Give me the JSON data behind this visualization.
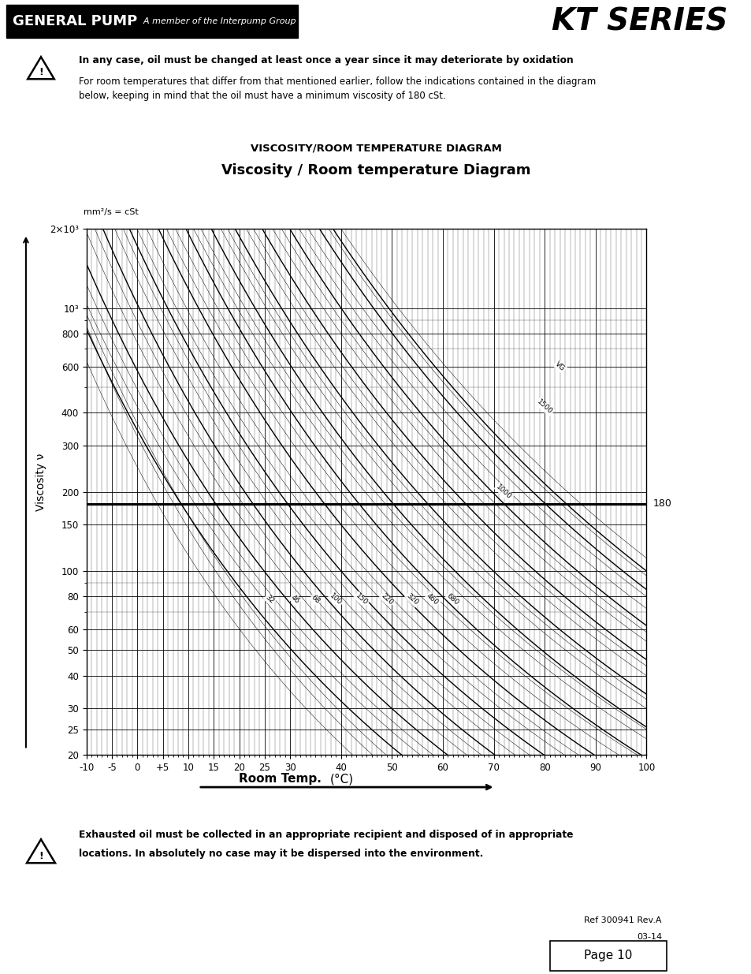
{
  "title_diagram": "VISCOSITY/ROOM TEMPERATURE DIAGRAM",
  "subtitle_diagram": "Viscosity / Room temperature Diagram",
  "ylabel_unit": "mm²/s = cSt",
  "ylabel_label": "Viscosity ν",
  "xlabel_label": "Room Temp.",
  "xlabel_unit": "(°C)",
  "header_left_text": "GENERAL PUMP",
  "header_left_sub": "A member of the Interpump Group",
  "header_right": "KT SERIES",
  "footer_note": "Exhausted oil must be collected in an appropriate recipient and disposed of in appropriate\nlocations. In absolutely no case may it be dispersed into the environment.",
  "ref_text": "Ref 300941 Rev.A",
  "ref_date": "03-14",
  "page_label": "Page 10",
  "warning_bold": "In any case, oil must be changed at least once a year since it may deteriorate by oxidation.",
  "warning_normal": "For room temperatures that differ from that mentioned earlier, follow the indications contained in the diagram\nbelow, keeping in mind that the oil must have a minimum viscosity of 180 cSt.",
  "x_min": -10,
  "x_max": 100,
  "y_log_min": 20,
  "y_log_max": 2000,
  "x_ticks": [
    -10,
    -5,
    0,
    5,
    10,
    15,
    20,
    25,
    30,
    40,
    50,
    60,
    70,
    80,
    90,
    100
  ],
  "x_tick_labels": [
    "-10",
    "-5",
    "0",
    "+5",
    "10",
    "15",
    "20",
    "25",
    "30",
    "40",
    "50",
    "60",
    "70",
    "80",
    "90",
    "100"
  ],
  "y_ticks": [
    20,
    25,
    30,
    40,
    50,
    60,
    80,
    100,
    150,
    200,
    300,
    400,
    600,
    800,
    1000,
    2000
  ],
  "y_tick_labels": [
    "20",
    "25",
    "30",
    "40",
    "50",
    "60",
    "80",
    "100",
    "150",
    "200",
    "300",
    "400",
    "600",
    "800",
    "10³",
    "2×10³"
  ],
  "hline_y": 180,
  "hline_label": "180",
  "bg_color": "#ffffff"
}
